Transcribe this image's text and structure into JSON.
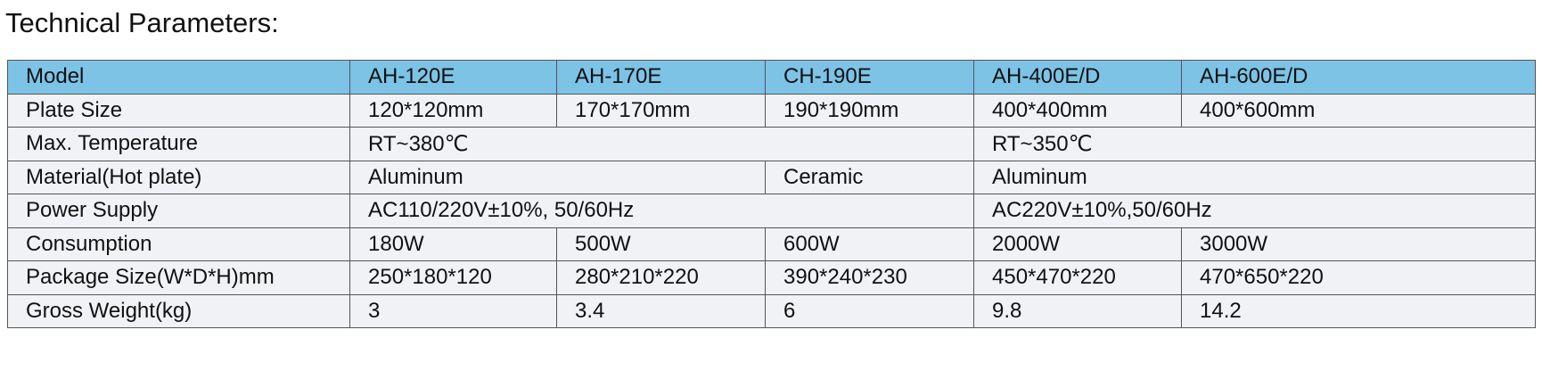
{
  "title": "Technical Parameters:",
  "colors": {
    "header_bg": "#7cc3e6",
    "row_bg": "#f1f2f5",
    "border": "#555555"
  },
  "header": [
    "Model",
    "AH-120E",
    "AH-170E",
    "CH-190E",
    "AH-400E/D",
    "AH-600E/D"
  ],
  "rows": [
    {
      "label": "Plate Size",
      "cells": [
        {
          "text": "120*120mm",
          "span": 1
        },
        {
          "text": "170*170mm",
          "span": 1
        },
        {
          "text": "190*190mm",
          "span": 1
        },
        {
          "text": "400*400mm",
          "span": 1
        },
        {
          "text": "400*600mm",
          "span": 1
        }
      ]
    },
    {
      "label": "Max. Temperature",
      "cells": [
        {
          "text": "RT~380℃",
          "span": 3
        },
        {
          "text": "RT~350℃",
          "span": 2
        }
      ]
    },
    {
      "label": "Material(Hot plate)",
      "cells": [
        {
          "text": "Aluminum",
          "span": 2
        },
        {
          "text": "Ceramic",
          "span": 1
        },
        {
          "text": "Aluminum",
          "span": 2
        }
      ]
    },
    {
      "label": "Power Supply",
      "cells": [
        {
          "text": "AC110/220V±10%, 50/60Hz",
          "span": 3
        },
        {
          "text": "AC220V±10%,50/60Hz",
          "span": 2
        }
      ]
    },
    {
      "label": "Consumption",
      "cells": [
        {
          "text": "180W",
          "span": 1
        },
        {
          "text": "500W",
          "span": 1
        },
        {
          "text": "600W",
          "span": 1
        },
        {
          "text": "2000W",
          "span": 1
        },
        {
          "text": "3000W",
          "span": 1
        }
      ]
    },
    {
      "label": "Package Size(W*D*H)mm",
      "cells": [
        {
          "text": "250*180*120",
          "span": 1
        },
        {
          "text": "280*210*220",
          "span": 1
        },
        {
          "text": "390*240*230",
          "span": 1
        },
        {
          "text": "450*470*220",
          "span": 1
        },
        {
          "text": "470*650*220",
          "span": 1
        }
      ]
    },
    {
      "label": "Gross Weight(kg)",
      "cells": [
        {
          "text": "3",
          "span": 1
        },
        {
          "text": "3.4",
          "span": 1
        },
        {
          "text": "6",
          "span": 1
        },
        {
          "text": "9.8",
          "span": 1
        },
        {
          "text": "14.2",
          "span": 1
        }
      ]
    }
  ]
}
